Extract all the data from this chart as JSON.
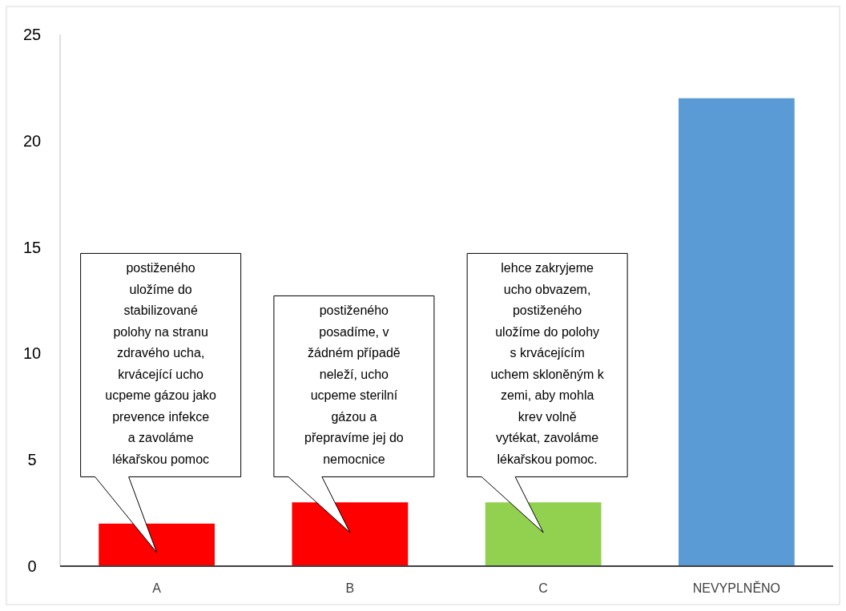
{
  "chart_data": {
    "type": "bar",
    "categories": [
      "A",
      "B",
      "C",
      "NEVYPLNĚNO"
    ],
    "values": [
      2,
      3,
      3,
      22
    ],
    "colors": [
      "#ff0000",
      "#ff0000",
      "#92d050",
      "#5b9bd5"
    ],
    "ylim": [
      0,
      25
    ],
    "yticks": [
      0,
      5,
      10,
      15,
      20,
      25
    ],
    "grid": false,
    "annotations": [
      "postiženého uložíme do stabilizované polohy na stranu zdravého ucha, krvácející ucho ucpeme gázou jako prevence infekce a zavoláme lékařskou pomoc",
      "postiženého posadíme, v žádném případě neleží, ucho ucpeme sterilní gázou a přepravíme jej do nemocnice",
      "lehce zakryjeme ucho obvazem, postiženého uložíme do polohy s krvácejícím uchem skloněným k zemi, aby mohla krev volně vytékat, zavoláme lékařskou pomoc."
    ]
  }
}
